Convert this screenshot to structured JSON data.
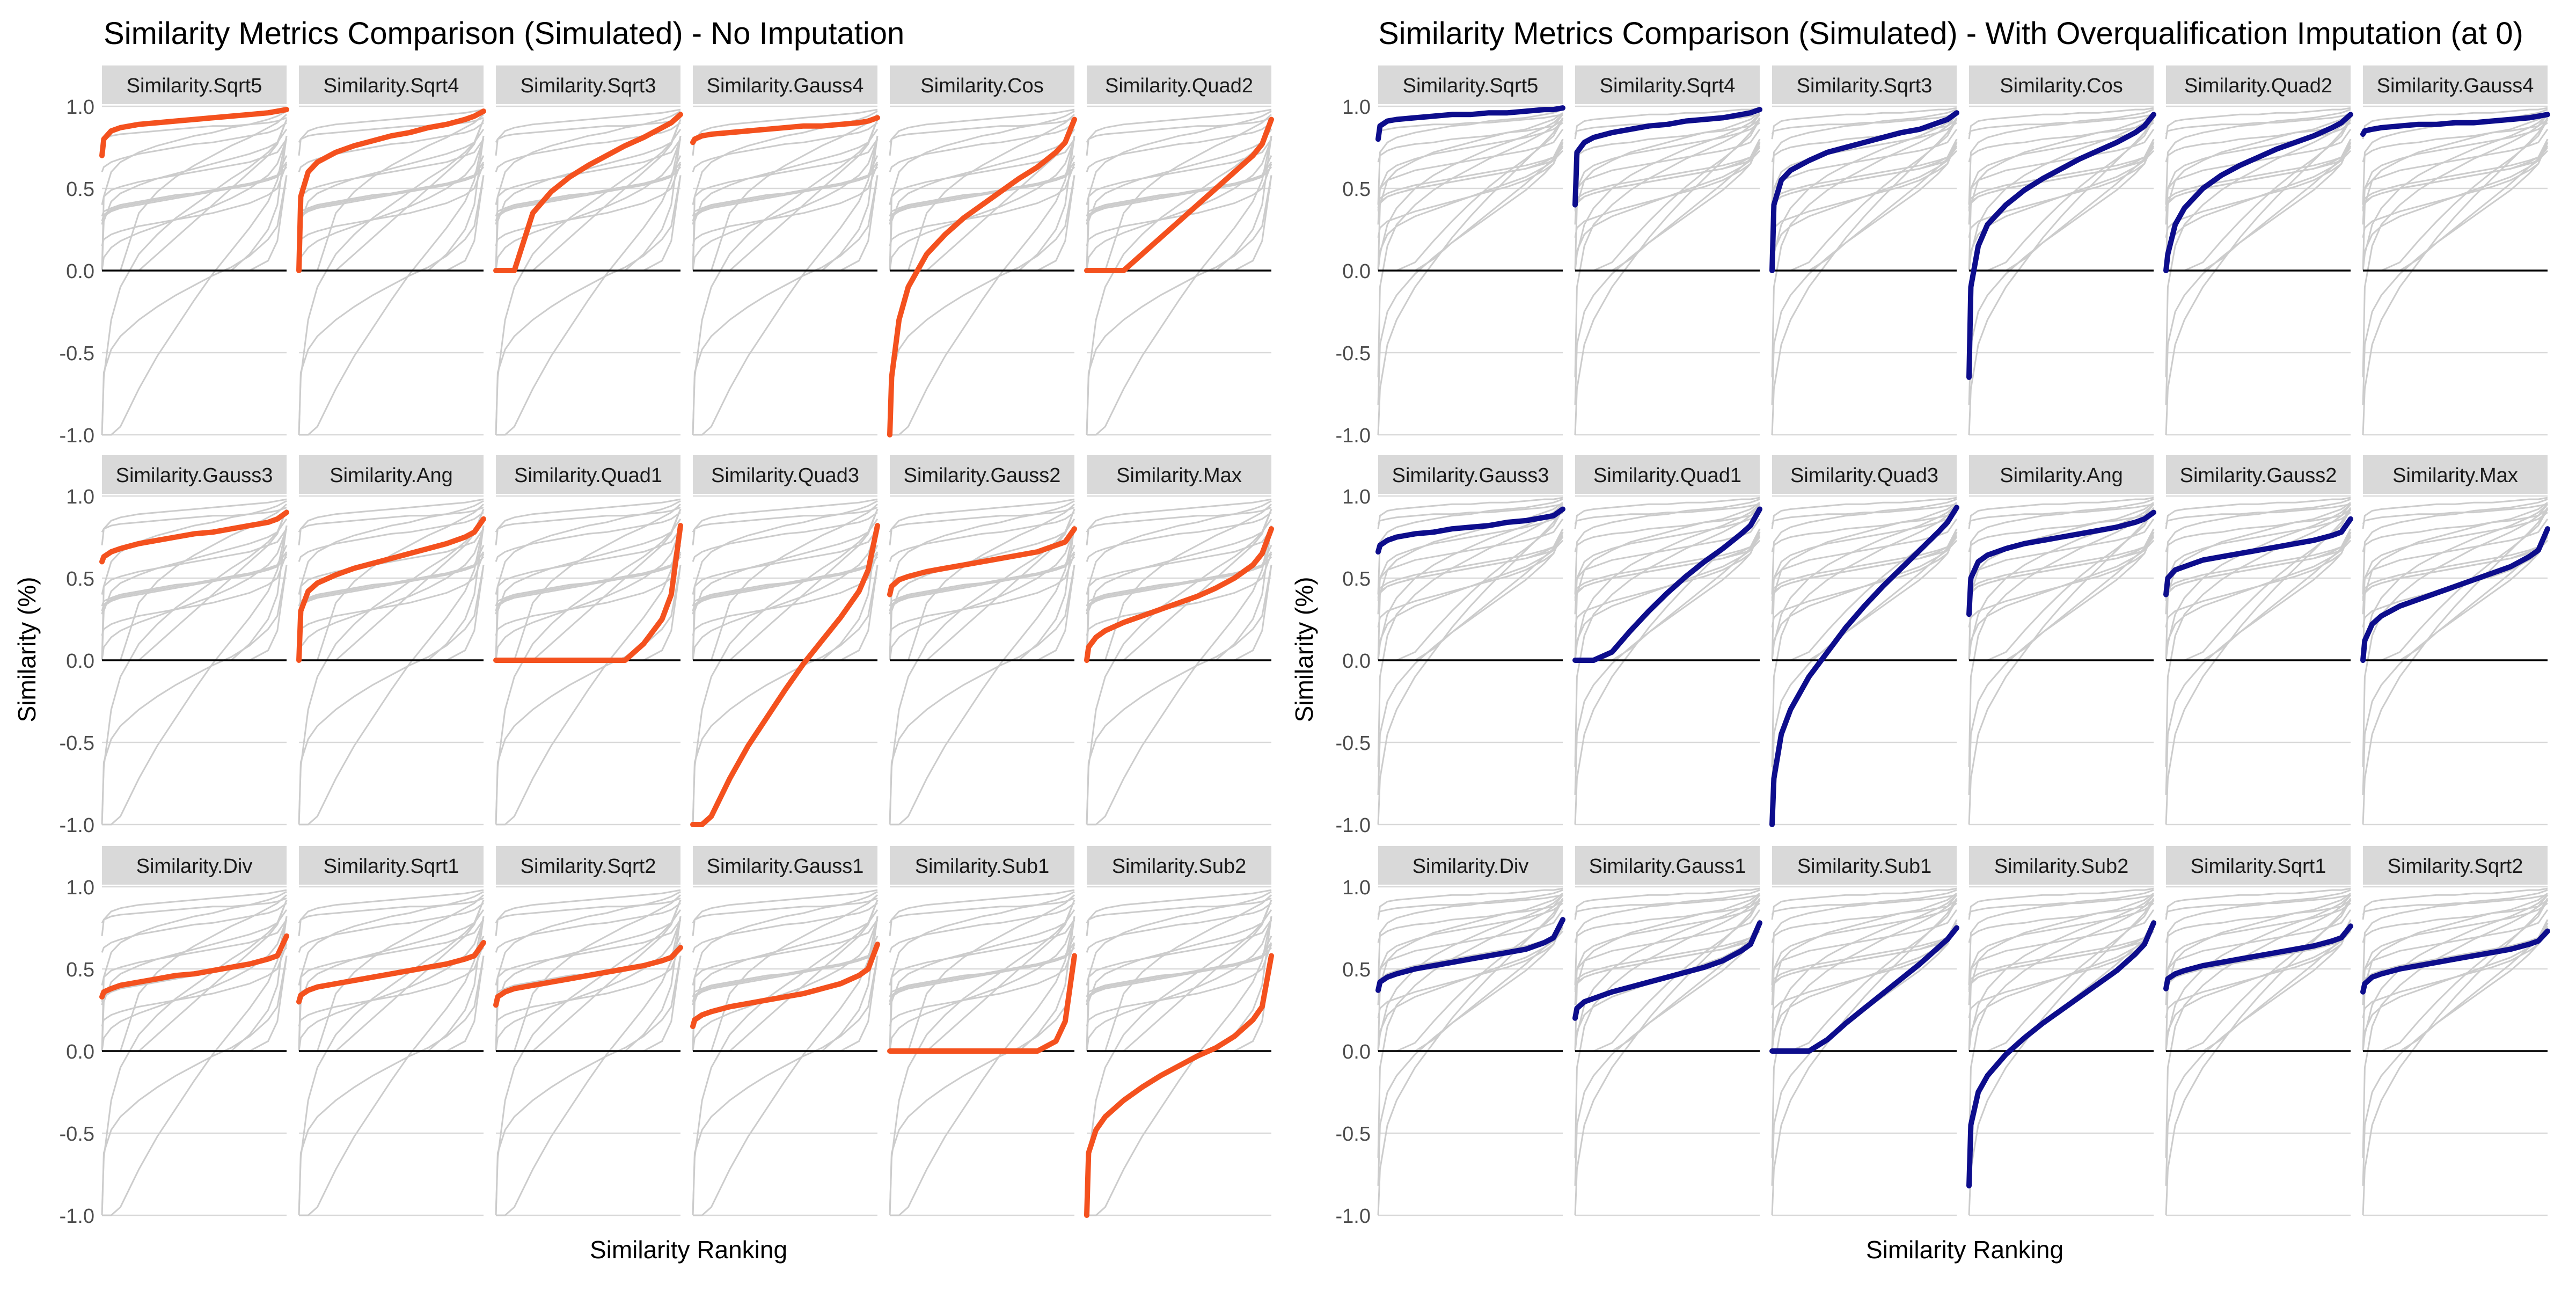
{
  "colors": {
    "left_highlight": "#F4511E",
    "right_highlight": "#0D0D8C",
    "background_line": "#CCCCCC",
    "strip_fill": "#D9D9D9",
    "grid": "#D9D9D9",
    "zero_line": "#000000"
  },
  "chart_data": [
    {
      "type": "line",
      "title": "Similarity Metrics Comparison (Simulated) - No Imputation",
      "xlabel": "Similarity Ranking",
      "ylabel": "Similarity (%)",
      "ylim": [
        -1.0,
        1.0
      ],
      "yticks": [
        "1.0",
        "0.5",
        "0.0",
        "-0.5",
        "-1.0"
      ],
      "x_ticks_shown": false,
      "facets": [
        "Similarity.Sqrt5",
        "Similarity.Sqrt4",
        "Similarity.Sqrt3",
        "Similarity.Gauss4",
        "Similarity.Cos",
        "Similarity.Quad2",
        "Similarity.Gauss3",
        "Similarity.Ang",
        "Similarity.Quad1",
        "Similarity.Quad3",
        "Similarity.Gauss2",
        "Similarity.Max",
        "Similarity.Div",
        "Similarity.Sqrt1",
        "Similarity.Sqrt2",
        "Similarity.Gauss1",
        "Similarity.Sub1",
        "Similarity.Sub2"
      ],
      "x": [
        0,
        0.01,
        0.05,
        0.1,
        0.2,
        0.3,
        0.4,
        0.5,
        0.6,
        0.7,
        0.8,
        0.9,
        0.95,
        1
      ],
      "series": [
        {
          "name": "Similarity.Sqrt5",
          "values": [
            0.7,
            0.8,
            0.85,
            0.87,
            0.89,
            0.9,
            0.91,
            0.92,
            0.93,
            0.94,
            0.95,
            0.96,
            0.97,
            0.98
          ]
        },
        {
          "name": "Similarity.Sqrt4",
          "values": [
            0.0,
            0.45,
            0.6,
            0.66,
            0.72,
            0.76,
            0.79,
            0.82,
            0.84,
            0.87,
            0.89,
            0.92,
            0.94,
            0.97
          ]
        },
        {
          "name": "Similarity.Sqrt3",
          "values": [
            0.0,
            0.0,
            0.0,
            0.0,
            0.35,
            0.48,
            0.57,
            0.64,
            0.7,
            0.76,
            0.81,
            0.87,
            0.9,
            0.95
          ]
        },
        {
          "name": "Similarity.Gauss4",
          "values": [
            0.78,
            0.8,
            0.82,
            0.83,
            0.84,
            0.85,
            0.86,
            0.87,
            0.88,
            0.88,
            0.89,
            0.9,
            0.91,
            0.93
          ]
        },
        {
          "name": "Similarity.Cos",
          "values": [
            -1.0,
            -0.65,
            -0.3,
            -0.1,
            0.1,
            0.22,
            0.32,
            0.4,
            0.48,
            0.56,
            0.63,
            0.72,
            0.78,
            0.92
          ]
        },
        {
          "name": "Similarity.Quad2",
          "values": [
            0.0,
            0.0,
            0.0,
            0.0,
            0.0,
            0.1,
            0.2,
            0.3,
            0.4,
            0.5,
            0.6,
            0.7,
            0.77,
            0.92
          ]
        },
        {
          "name": "Similarity.Gauss3",
          "values": [
            0.6,
            0.63,
            0.66,
            0.68,
            0.71,
            0.73,
            0.75,
            0.77,
            0.78,
            0.8,
            0.82,
            0.84,
            0.86,
            0.9
          ]
        },
        {
          "name": "Similarity.Ang",
          "values": [
            0.0,
            0.3,
            0.42,
            0.47,
            0.52,
            0.56,
            0.59,
            0.62,
            0.65,
            0.68,
            0.71,
            0.75,
            0.78,
            0.86
          ]
        },
        {
          "name": "Similarity.Quad1",
          "values": [
            0.0,
            0.0,
            0.0,
            0.0,
            0.0,
            0.0,
            0.0,
            0.0,
            0.0,
            0.0,
            0.1,
            0.25,
            0.4,
            0.82
          ]
        },
        {
          "name": "Similarity.Quad3",
          "values": [
            -1.0,
            -1.0,
            -1.0,
            -0.95,
            -0.72,
            -0.52,
            -0.35,
            -0.18,
            -0.02,
            0.12,
            0.26,
            0.42,
            0.55,
            0.82
          ]
        },
        {
          "name": "Similarity.Gauss2",
          "values": [
            0.4,
            0.45,
            0.49,
            0.51,
            0.54,
            0.56,
            0.58,
            0.6,
            0.62,
            0.64,
            0.66,
            0.7,
            0.72,
            0.8
          ]
        },
        {
          "name": "Similarity.Max",
          "values": [
            0.0,
            0.08,
            0.14,
            0.18,
            0.23,
            0.27,
            0.31,
            0.35,
            0.39,
            0.44,
            0.5,
            0.58,
            0.65,
            0.8
          ]
        },
        {
          "name": "Similarity.Div",
          "values": [
            0.33,
            0.36,
            0.38,
            0.4,
            0.42,
            0.44,
            0.46,
            0.47,
            0.49,
            0.51,
            0.53,
            0.56,
            0.58,
            0.7
          ]
        },
        {
          "name": "Similarity.Sqrt1",
          "values": [
            0.3,
            0.34,
            0.37,
            0.39,
            0.41,
            0.43,
            0.45,
            0.47,
            0.49,
            0.51,
            0.53,
            0.56,
            0.58,
            0.66
          ]
        },
        {
          "name": "Similarity.Sqrt2",
          "values": [
            0.28,
            0.33,
            0.36,
            0.38,
            0.4,
            0.42,
            0.44,
            0.46,
            0.48,
            0.5,
            0.52,
            0.55,
            0.57,
            0.63
          ]
        },
        {
          "name": "Similarity.Gauss1",
          "values": [
            0.15,
            0.19,
            0.22,
            0.24,
            0.27,
            0.29,
            0.31,
            0.33,
            0.35,
            0.38,
            0.41,
            0.46,
            0.5,
            0.65
          ]
        },
        {
          "name": "Similarity.Sub1",
          "values": [
            0.0,
            0.0,
            0.0,
            0.0,
            0.0,
            0.0,
            0.0,
            0.0,
            0.0,
            0.0,
            0.0,
            0.06,
            0.18,
            0.58
          ]
        },
        {
          "name": "Similarity.Sub2",
          "values": [
            -1.0,
            -0.62,
            -0.48,
            -0.4,
            -0.3,
            -0.22,
            -0.15,
            -0.09,
            -0.03,
            0.02,
            0.09,
            0.19,
            0.27,
            0.58
          ]
        }
      ]
    },
    {
      "type": "line",
      "title": "Similarity Metrics Comparison (Simulated) - With Overqualification Imputation (at 0)",
      "xlabel": "Similarity Ranking",
      "ylabel": "Similarity (%)",
      "ylim": [
        -1.0,
        1.0
      ],
      "yticks": [
        "1.0",
        "0.5",
        "0.0",
        "-0.5",
        "-1.0"
      ],
      "x_ticks_shown": false,
      "facets": [
        "Similarity.Sqrt5",
        "Similarity.Sqrt4",
        "Similarity.Sqrt3",
        "Similarity.Cos",
        "Similarity.Quad2",
        "Similarity.Gauss4",
        "Similarity.Gauss3",
        "Similarity.Quad1",
        "Similarity.Quad3",
        "Similarity.Ang",
        "Similarity.Gauss2",
        "Similarity.Max",
        "Similarity.Div",
        "Similarity.Gauss1",
        "Similarity.Sub1",
        "Similarity.Sub2",
        "Similarity.Sqrt1",
        "Similarity.Sqrt2"
      ],
      "x": [
        0,
        0.01,
        0.05,
        0.1,
        0.2,
        0.3,
        0.4,
        0.5,
        0.6,
        0.7,
        0.8,
        0.9,
        0.95,
        1
      ],
      "series": [
        {
          "name": "Similarity.Sqrt5",
          "values": [
            0.8,
            0.88,
            0.91,
            0.92,
            0.93,
            0.94,
            0.95,
            0.95,
            0.96,
            0.96,
            0.97,
            0.98,
            0.98,
            0.99
          ]
        },
        {
          "name": "Similarity.Sqrt4",
          "values": [
            0.4,
            0.72,
            0.78,
            0.81,
            0.84,
            0.86,
            0.88,
            0.89,
            0.91,
            0.92,
            0.93,
            0.95,
            0.96,
            0.98
          ]
        },
        {
          "name": "Similarity.Sqrt3",
          "values": [
            0.0,
            0.4,
            0.55,
            0.61,
            0.67,
            0.72,
            0.75,
            0.78,
            0.81,
            0.84,
            0.86,
            0.9,
            0.92,
            0.96
          ]
        },
        {
          "name": "Similarity.Cos",
          "values": [
            -0.65,
            -0.1,
            0.15,
            0.28,
            0.4,
            0.49,
            0.56,
            0.62,
            0.68,
            0.73,
            0.78,
            0.84,
            0.88,
            0.95
          ]
        },
        {
          "name": "Similarity.Quad2",
          "values": [
            0.0,
            0.1,
            0.28,
            0.38,
            0.5,
            0.58,
            0.64,
            0.69,
            0.74,
            0.78,
            0.82,
            0.87,
            0.9,
            0.95
          ]
        },
        {
          "name": "Similarity.Gauss4",
          "values": [
            0.83,
            0.85,
            0.86,
            0.87,
            0.88,
            0.89,
            0.89,
            0.9,
            0.9,
            0.91,
            0.92,
            0.93,
            0.94,
            0.95
          ]
        },
        {
          "name": "Similarity.Gauss3",
          "values": [
            0.66,
            0.7,
            0.73,
            0.75,
            0.77,
            0.78,
            0.8,
            0.81,
            0.82,
            0.84,
            0.85,
            0.87,
            0.88,
            0.92
          ]
        },
        {
          "name": "Similarity.Quad1",
          "values": [
            0.0,
            0.0,
            0.0,
            0.0,
            0.05,
            0.18,
            0.3,
            0.41,
            0.51,
            0.6,
            0.68,
            0.77,
            0.82,
            0.92
          ]
        },
        {
          "name": "Similarity.Quad3",
          "values": [
            -1.0,
            -0.72,
            -0.45,
            -0.3,
            -0.1,
            0.05,
            0.2,
            0.33,
            0.45,
            0.56,
            0.67,
            0.78,
            0.84,
            0.93
          ]
        },
        {
          "name": "Similarity.Ang",
          "values": [
            0.28,
            0.5,
            0.6,
            0.64,
            0.68,
            0.71,
            0.73,
            0.75,
            0.77,
            0.79,
            0.81,
            0.84,
            0.86,
            0.9
          ]
        },
        {
          "name": "Similarity.Gauss2",
          "values": [
            0.4,
            0.5,
            0.55,
            0.57,
            0.61,
            0.63,
            0.65,
            0.67,
            0.69,
            0.71,
            0.73,
            0.76,
            0.78,
            0.86
          ]
        },
        {
          "name": "Similarity.Max",
          "values": [
            0.0,
            0.12,
            0.22,
            0.27,
            0.33,
            0.37,
            0.41,
            0.45,
            0.49,
            0.53,
            0.57,
            0.63,
            0.67,
            0.8
          ]
        },
        {
          "name": "Similarity.Div",
          "values": [
            0.37,
            0.42,
            0.45,
            0.47,
            0.5,
            0.52,
            0.54,
            0.56,
            0.58,
            0.6,
            0.62,
            0.66,
            0.69,
            0.8
          ]
        },
        {
          "name": "Similarity.Gauss1",
          "values": [
            0.2,
            0.26,
            0.3,
            0.32,
            0.36,
            0.39,
            0.42,
            0.45,
            0.48,
            0.51,
            0.55,
            0.61,
            0.65,
            0.78
          ]
        },
        {
          "name": "Similarity.Sub1",
          "values": [
            0.0,
            0.0,
            0.0,
            0.0,
            0.0,
            0.07,
            0.17,
            0.26,
            0.35,
            0.44,
            0.53,
            0.63,
            0.68,
            0.75
          ]
        },
        {
          "name": "Similarity.Sub2",
          "values": [
            -0.82,
            -0.45,
            -0.25,
            -0.15,
            -0.02,
            0.08,
            0.17,
            0.25,
            0.33,
            0.41,
            0.49,
            0.59,
            0.65,
            0.78
          ]
        },
        {
          "name": "Similarity.Sqrt1",
          "values": [
            0.38,
            0.44,
            0.47,
            0.49,
            0.52,
            0.54,
            0.56,
            0.58,
            0.6,
            0.62,
            0.64,
            0.67,
            0.69,
            0.76
          ]
        },
        {
          "name": "Similarity.Sqrt2",
          "values": [
            0.36,
            0.41,
            0.45,
            0.47,
            0.5,
            0.52,
            0.54,
            0.56,
            0.58,
            0.6,
            0.62,
            0.65,
            0.67,
            0.73
          ]
        }
      ]
    }
  ]
}
